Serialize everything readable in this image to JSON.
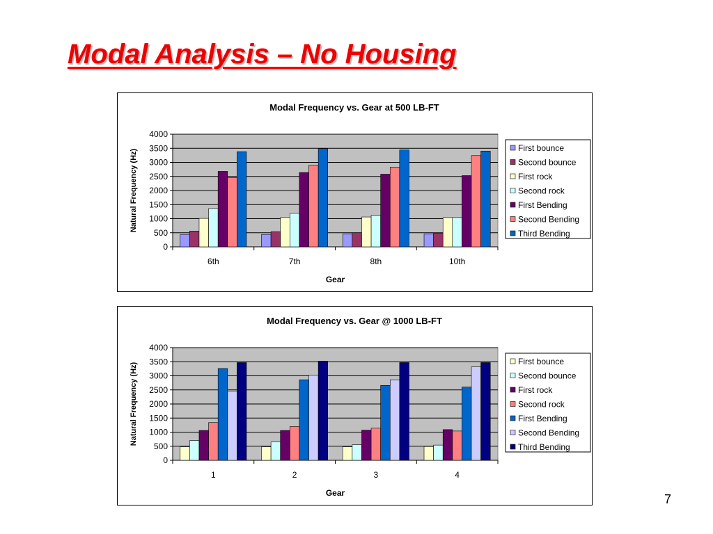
{
  "slide": {
    "title": "Modal Analysis – No Housing",
    "page_number": "7"
  },
  "chart_data": [
    {
      "type": "bar",
      "title": "Modal Frequency vs. Gear at 500 LB-FT",
      "xlabel": "Gear",
      "ylabel": "Natural Frequency (Hz)",
      "ylim": [
        0,
        4000
      ],
      "yticks": [
        0,
        500,
        1000,
        1500,
        2000,
        2500,
        3000,
        3500,
        4000
      ],
      "grid": "horizontal",
      "legend_position": "right",
      "plot_background": "#c0c0c0",
      "categories": [
        "6th",
        "7th",
        "8th",
        "10th"
      ],
      "series": [
        {
          "name": "First bounce",
          "color": "#9999ff",
          "values": [
            440,
            440,
            460,
            460
          ]
        },
        {
          "name": "Second bounce",
          "color": "#993366",
          "values": [
            560,
            540,
            500,
            490
          ]
        },
        {
          "name": "First rock",
          "color": "#ffffcc",
          "values": [
            1010,
            1040,
            1060,
            1040
          ]
        },
        {
          "name": "Second rock",
          "color": "#ccffff",
          "values": [
            1360,
            1190,
            1120,
            1040
          ]
        },
        {
          "name": "First Bending",
          "color": "#660066",
          "values": [
            2680,
            2640,
            2580,
            2530
          ]
        },
        {
          "name": "Second Bending",
          "color": "#ff8080",
          "values": [
            2460,
            2900,
            2830,
            3240
          ]
        },
        {
          "name": "Third Bending",
          "color": "#0066cc",
          "values": [
            3380,
            3490,
            3440,
            3400
          ]
        }
      ]
    },
    {
      "type": "bar",
      "title": "Modal Frequency vs. Gear @ 1000 LB-FT",
      "xlabel": "Gear",
      "ylabel": "Natural Frequency (Hz)",
      "ylim": [
        0,
        4000
      ],
      "yticks": [
        0,
        500,
        1000,
        1500,
        2000,
        2500,
        3000,
        3500,
        4000
      ],
      "grid": "horizontal",
      "legend_position": "right",
      "plot_background": "#c0c0c0",
      "categories": [
        "1",
        "2",
        "3",
        "4"
      ],
      "series": [
        {
          "name": "First bounce",
          "color": "#ffffcc",
          "values": [
            480,
            480,
            480,
            490
          ]
        },
        {
          "name": "Second bounce",
          "color": "#ccffff",
          "values": [
            700,
            650,
            550,
            540
          ]
        },
        {
          "name": "First rock",
          "color": "#660066",
          "values": [
            1060,
            1060,
            1070,
            1090
          ]
        },
        {
          "name": "Second rock",
          "color": "#ff8080",
          "values": [
            1340,
            1200,
            1140,
            1040
          ]
        },
        {
          "name": "First Bending",
          "color": "#0066cc",
          "values": [
            3260,
            2860,
            2660,
            2600
          ]
        },
        {
          "name": "Second Bending",
          "color": "#ccccff",
          "values": [
            2460,
            3020,
            2860,
            3320
          ]
        },
        {
          "name": "Third Bending",
          "color": "#000080",
          "values": [
            3470,
            3520,
            3470,
            3470
          ]
        }
      ]
    }
  ]
}
